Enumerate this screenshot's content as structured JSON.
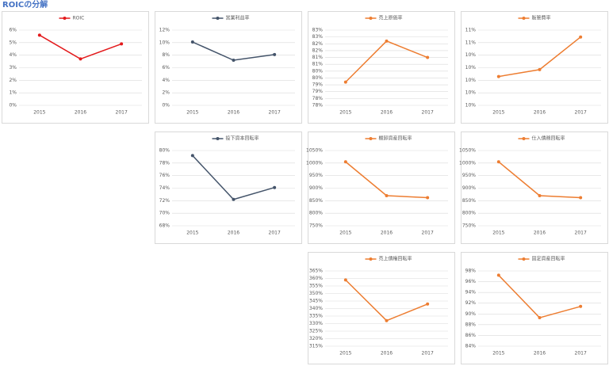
{
  "title": "ROICの分解",
  "chart_data": [
    {
      "type": "line",
      "categories": [
        "2015",
        "2016",
        "2017"
      ],
      "grid": true,
      "legend": "top",
      "series": [
        {
          "name": "ROIC",
          "color": "#e31a1c",
          "values": [
            5.6,
            3.7,
            4.9
          ]
        }
      ],
      "ylim": [
        0,
        6
      ],
      "yticks": [
        {
          "value": 0,
          "label": "0%"
        },
        {
          "value": 1,
          "label": "1%"
        },
        {
          "value": 2,
          "label": "2%"
        },
        {
          "value": 3,
          "label": "3%"
        },
        {
          "value": 4,
          "label": "4%"
        },
        {
          "value": 5,
          "label": "5%"
        },
        {
          "value": 6,
          "label": "6%"
        }
      ]
    },
    {
      "type": "line",
      "categories": [
        "2015",
        "2016",
        "2017"
      ],
      "grid": true,
      "legend": "top",
      "series": [
        {
          "name": "営業利益率",
          "color": "#44546a",
          "values": [
            10.1,
            7.2,
            8.1
          ]
        }
      ],
      "ylim": [
        0,
        12
      ],
      "yticks": [
        {
          "value": 0,
          "label": "0%"
        },
        {
          "value": 2,
          "label": "2%"
        },
        {
          "value": 4,
          "label": "4%"
        },
        {
          "value": 6,
          "label": "6%"
        },
        {
          "value": 8,
          "label": "8%"
        },
        {
          "value": 10,
          "label": "10%"
        },
        {
          "value": 12,
          "label": "12%"
        }
      ]
    },
    {
      "type": "line",
      "categories": [
        "2015",
        "2016",
        "2017"
      ],
      "grid": true,
      "legend": "top",
      "series": [
        {
          "name": "売上原価率",
          "color": "#ed7d31",
          "values": [
            79.2,
            82.2,
            81.0
          ]
        }
      ],
      "ylim": [
        77.5,
        83
      ],
      "yticks": [
        {
          "value": 77.5,
          "label": "78%"
        },
        {
          "value": 78,
          "label": "78%"
        },
        {
          "value": 78.5,
          "label": "79%"
        },
        {
          "value": 79,
          "label": "79%"
        },
        {
          "value": 79.5,
          "label": "80%"
        },
        {
          "value": 80,
          "label": "80%"
        },
        {
          "value": 80.5,
          "label": "81%"
        },
        {
          "value": 81,
          "label": "81%"
        },
        {
          "value": 81.5,
          "label": "82%"
        },
        {
          "value": 82,
          "label": "82%"
        },
        {
          "value": 82.5,
          "label": "83%"
        },
        {
          "value": 83,
          "label": "83%"
        }
      ]
    },
    {
      "type": "line",
      "categories": [
        "2015",
        "2016",
        "2017"
      ],
      "grid": true,
      "legend": "top",
      "series": [
        {
          "name": "販管費率",
          "color": "#ed7d31",
          "values": [
            10.06,
            10.17,
            10.69
          ]
        }
      ],
      "ylim": [
        9.6,
        10.8
      ],
      "yticks": [
        {
          "value": 9.6,
          "label": "10%"
        },
        {
          "value": 9.8,
          "label": "10%"
        },
        {
          "value": 10.0,
          "label": "10%"
        },
        {
          "value": 10.2,
          "label": "10%"
        },
        {
          "value": 10.4,
          "label": "10%"
        },
        {
          "value": 10.6,
          "label": "11%"
        },
        {
          "value": 10.8,
          "label": "11%"
        }
      ]
    },
    {
      "type": "line",
      "categories": [
        "2015",
        "2016",
        "2017"
      ],
      "grid": true,
      "legend": "top",
      "series": [
        {
          "name": "投下資本回転率",
          "color": "#44546a",
          "values": [
            79.2,
            72.2,
            74.1
          ]
        }
      ],
      "ylim": [
        68,
        80
      ],
      "yticks": [
        {
          "value": 68,
          "label": "68%"
        },
        {
          "value": 70,
          "label": "70%"
        },
        {
          "value": 72,
          "label": "72%"
        },
        {
          "value": 74,
          "label": "74%"
        },
        {
          "value": 76,
          "label": "76%"
        },
        {
          "value": 78,
          "label": "78%"
        },
        {
          "value": 80,
          "label": "80%"
        }
      ]
    },
    {
      "type": "line",
      "categories": [
        "2015",
        "2016",
        "2017"
      ],
      "grid": true,
      "legend": "top",
      "series": [
        {
          "name": "棚卸資産回転率",
          "color": "#ed7d31",
          "values": [
            1005,
            870,
            862
          ]
        }
      ],
      "ylim": [
        750,
        1050
      ],
      "yticks": [
        {
          "value": 750,
          "label": "750%"
        },
        {
          "value": 800,
          "label": "800%"
        },
        {
          "value": 850,
          "label": "850%"
        },
        {
          "value": 900,
          "label": "900%"
        },
        {
          "value": 950,
          "label": "950%"
        },
        {
          "value": 1000,
          "label": "1000%"
        },
        {
          "value": 1050,
          "label": "1050%"
        }
      ]
    },
    {
      "type": "line",
      "categories": [
        "2015",
        "2016",
        "2017"
      ],
      "grid": true,
      "legend": "top",
      "series": [
        {
          "name": "仕入債務回転率",
          "color": "#ed7d31",
          "values": [
            1005,
            870,
            862
          ]
        }
      ],
      "ylim": [
        750,
        1050
      ],
      "yticks": [
        {
          "value": 750,
          "label": "750%"
        },
        {
          "value": 800,
          "label": "800%"
        },
        {
          "value": 850,
          "label": "850%"
        },
        {
          "value": 900,
          "label": "900%"
        },
        {
          "value": 950,
          "label": "950%"
        },
        {
          "value": 1000,
          "label": "1000%"
        },
        {
          "value": 1050,
          "label": "1050%"
        }
      ]
    },
    {
      "type": "line",
      "categories": [
        "2015",
        "2016",
        "2017"
      ],
      "grid": true,
      "legend": "top",
      "series": [
        {
          "name": "売上債権回転率",
          "color": "#ed7d31",
          "values": [
            359,
            332,
            343
          ]
        }
      ],
      "ylim": [
        315,
        365
      ],
      "yticks": [
        {
          "value": 315,
          "label": "315%"
        },
        {
          "value": 320,
          "label": "320%"
        },
        {
          "value": 325,
          "label": "325%"
        },
        {
          "value": 330,
          "label": "330%"
        },
        {
          "value": 335,
          "label": "335%"
        },
        {
          "value": 340,
          "label": "340%"
        },
        {
          "value": 345,
          "label": "345%"
        },
        {
          "value": 350,
          "label": "350%"
        },
        {
          "value": 355,
          "label": "355%"
        },
        {
          "value": 360,
          "label": "360%"
        },
        {
          "value": 365,
          "label": "365%"
        }
      ]
    },
    {
      "type": "line",
      "categories": [
        "2015",
        "2016",
        "2017"
      ],
      "grid": true,
      "legend": "top",
      "series": [
        {
          "name": "固定資産回転率",
          "color": "#ed7d31",
          "values": [
            97.2,
            89.3,
            91.4
          ]
        }
      ],
      "ylim": [
        84,
        98
      ],
      "yticks": [
        {
          "value": 84,
          "label": "84%"
        },
        {
          "value": 86,
          "label": "86%"
        },
        {
          "value": 88,
          "label": "88%"
        },
        {
          "value": 90,
          "label": "90%"
        },
        {
          "value": 92,
          "label": "92%"
        },
        {
          "value": 94,
          "label": "94%"
        },
        {
          "value": 96,
          "label": "96%"
        },
        {
          "value": 98,
          "label": "98%"
        }
      ]
    }
  ]
}
